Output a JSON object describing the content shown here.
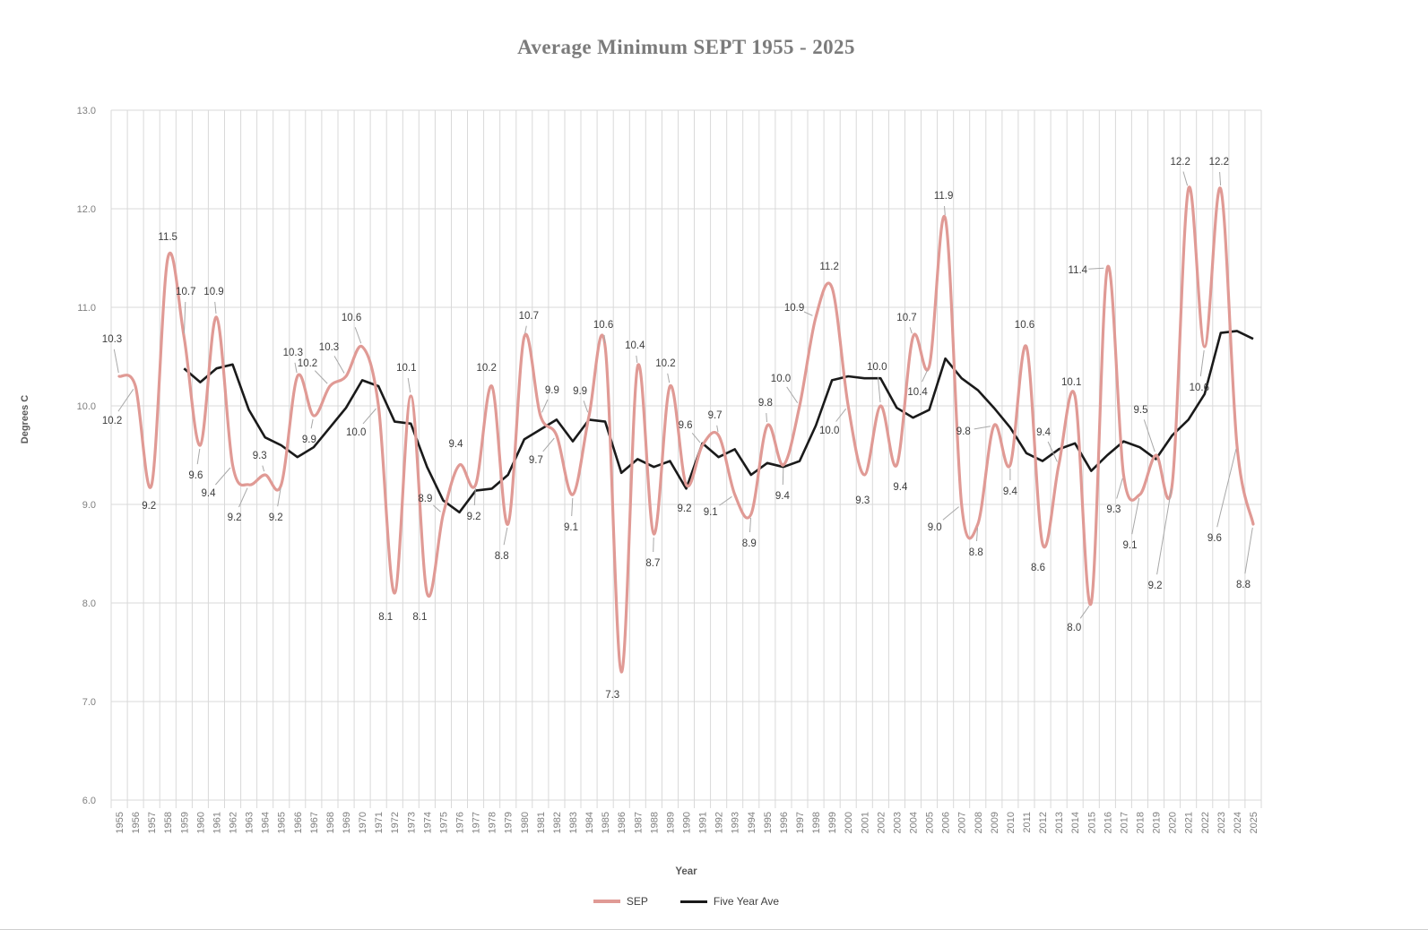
{
  "title": "Average Minimum SEPT 1955 - 2025",
  "x_axis": {
    "title": "Year"
  },
  "y_axis": {
    "title": "Degrees C",
    "ticks": [
      "6.0",
      "7.0",
      "8.0",
      "9.0",
      "10.0",
      "11.0",
      "12.0",
      "13.0"
    ]
  },
  "legend": {
    "items": [
      {
        "label": "SEP",
        "color": "#e09a95"
      },
      {
        "label": "Five Year Ave",
        "color": "#1a1a1a"
      }
    ]
  },
  "chart_data": {
    "type": "line",
    "title": "Average Minimum SEPT 1955 - 2025",
    "xlabel": "Year",
    "ylabel": "Degrees C",
    "ylim": [
      6.0,
      13.0
    ],
    "ytick_step": 1.0,
    "grid": true,
    "legend_position": "bottom",
    "x": [
      1955,
      1956,
      1957,
      1958,
      1959,
      1960,
      1961,
      1962,
      1963,
      1964,
      1965,
      1966,
      1967,
      1968,
      1969,
      1970,
      1971,
      1972,
      1973,
      1974,
      1975,
      1976,
      1977,
      1978,
      1979,
      1980,
      1981,
      1982,
      1983,
      1984,
      1985,
      1986,
      1987,
      1988,
      1989,
      1990,
      1991,
      1992,
      1993,
      1994,
      1995,
      1996,
      1997,
      1998,
      1999,
      2000,
      2001,
      2002,
      2003,
      2004,
      2005,
      2006,
      2007,
      2008,
      2009,
      2010,
      2011,
      2012,
      2013,
      2014,
      2015,
      2016,
      2017,
      2018,
      2019,
      2020,
      2021,
      2022,
      2023,
      2024,
      2025
    ],
    "series": [
      {
        "name": "SEP",
        "style": "smooth",
        "color": "#e09a95",
        "data_labels": true,
        "values": [
          10.3,
          10.2,
          9.2,
          11.5,
          10.7,
          9.6,
          10.9,
          9.4,
          9.2,
          9.3,
          9.2,
          10.3,
          9.9,
          10.2,
          10.3,
          10.6,
          10.0,
          8.1,
          10.1,
          8.1,
          8.9,
          9.4,
          9.2,
          10.2,
          8.8,
          10.7,
          9.9,
          9.7,
          9.1,
          9.9,
          10.6,
          7.3,
          10.4,
          8.7,
          10.2,
          9.2,
          9.6,
          9.7,
          9.1,
          8.9,
          9.8,
          9.4,
          10.0,
          10.9,
          11.2,
          10.0,
          9.3,
          10.0,
          9.4,
          10.7,
          10.4,
          11.9,
          9.0,
          8.8,
          9.8,
          9.4,
          10.6,
          8.6,
          9.4,
          10.1,
          8.0,
          11.4,
          9.3,
          9.1,
          9.5,
          9.2,
          12.2,
          10.6,
          12.2,
          9.6,
          8.8
        ]
      },
      {
        "name": "Five Year Ave",
        "style": "straight",
        "color": "#1a1a1a",
        "data_labels": false,
        "values": [
          null,
          null,
          null,
          null,
          10.38,
          10.24,
          10.38,
          10.42,
          9.96,
          9.68,
          9.6,
          9.48,
          9.58,
          9.78,
          9.98,
          10.26,
          10.2,
          9.84,
          9.82,
          9.38,
          9.04,
          8.92,
          9.14,
          9.16,
          9.3,
          9.66,
          9.76,
          9.86,
          9.64,
          9.86,
          9.84,
          9.32,
          9.46,
          9.38,
          9.44,
          9.16,
          9.62,
          9.48,
          9.56,
          9.3,
          9.42,
          9.38,
          9.44,
          9.8,
          10.26,
          10.3,
          10.28,
          10.28,
          9.98,
          9.88,
          9.96,
          10.48,
          10.28,
          10.16,
          9.98,
          9.78,
          9.52,
          9.44,
          9.56,
          9.62,
          9.34,
          9.5,
          9.64,
          9.58,
          9.46,
          9.7,
          9.86,
          10.12,
          10.74,
          10.76,
          10.68
        ]
      }
    ]
  }
}
